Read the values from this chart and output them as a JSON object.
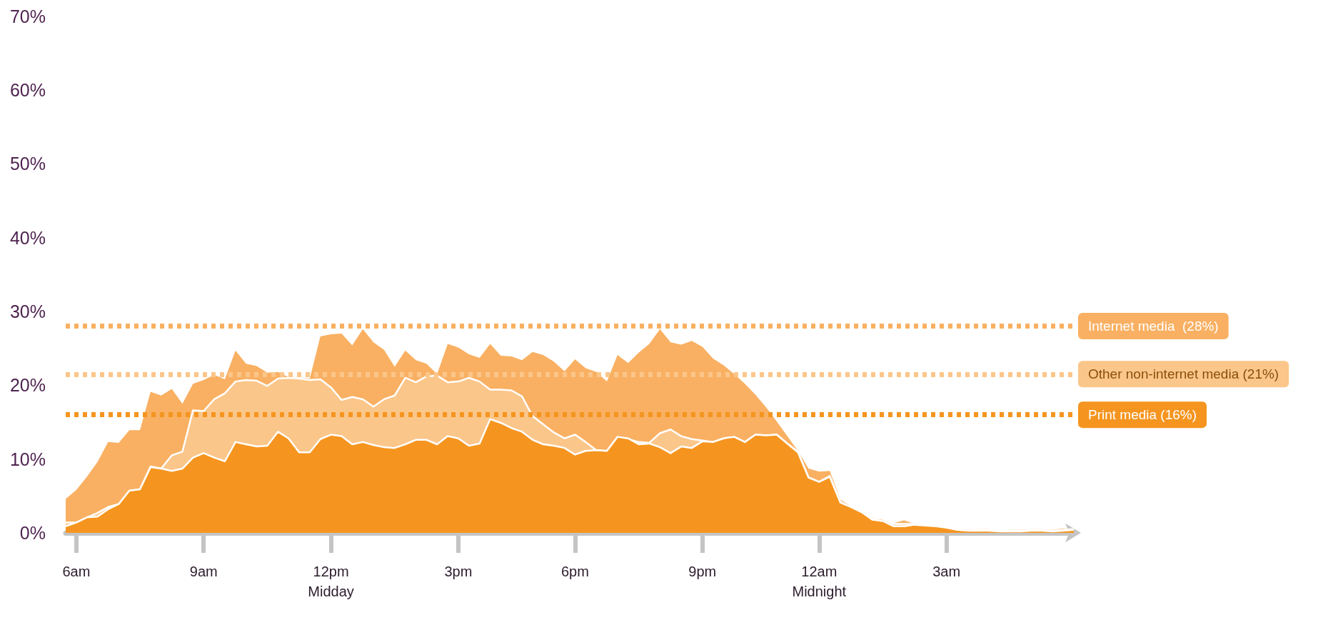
{
  "chart_data": {
    "type": "area",
    "categories": [
      null,
      "6am",
      null,
      null,
      null,
      null,
      null,
      null,
      null,
      null,
      null,
      null,
      null,
      "9am",
      null,
      null,
      null,
      null,
      null,
      null,
      null,
      null,
      null,
      null,
      null,
      "12pm\nMidday",
      null,
      null,
      null,
      null,
      null,
      null,
      null,
      null,
      null,
      null,
      null,
      "3pm",
      null,
      null,
      null,
      null,
      null,
      null,
      null,
      null,
      null,
      null,
      "6pm",
      null,
      null,
      null,
      null,
      null,
      null,
      null,
      null,
      null,
      null,
      null,
      "9pm",
      null,
      null,
      null,
      null,
      null,
      null,
      null,
      null,
      null,
      null,
      "12am\nMidnight",
      null,
      null,
      null,
      null,
      null,
      null,
      null,
      null,
      null,
      null,
      null,
      "3am",
      null,
      null,
      null,
      null,
      null,
      null,
      null,
      null,
      null,
      null,
      null,
      null
    ],
    "series": [
      {
        "color": "#f9b062",
        "values": [
          4.6,
          5.8,
          7.6,
          9.6,
          12.3,
          12.2,
          13.9,
          13.9,
          19.1,
          18.6,
          19.5,
          17.5,
          20.2,
          20.7,
          21.4,
          20.8,
          24.7,
          22.9,
          22.6,
          21.7,
          21.8,
          21.1,
          21.0,
          20.9,
          26.6,
          26.9,
          27.0,
          25.4,
          27.6,
          25.8,
          24.8,
          22.5,
          24.7,
          23.4,
          22.9,
          21.5,
          25.6,
          25.1,
          24.2,
          23.7,
          25.6,
          24.0,
          23.9,
          23.4,
          24.5,
          24.1,
          23.2,
          21.9,
          23.5,
          22.3,
          21.8,
          20.5,
          24.1,
          23.0,
          24.4,
          25.6,
          27.6,
          25.8,
          25.5,
          26.0,
          25.2,
          23.6,
          22.7,
          21.5,
          20.2,
          18.7,
          17.0,
          15.1,
          13.1,
          11.1,
          8.7,
          8.3,
          8.4,
          4.5,
          3.6,
          2.8,
          2.1,
          1.9,
          1.3,
          1.7,
          1.2,
          1.0,
          1.0,
          0.7,
          0.5,
          0.4,
          0.5,
          0.5,
          0.3,
          0.4,
          0.4,
          0.5,
          0.5,
          0.4,
          0.6,
          0.5
        ]
      },
      {
        "color": "#fbc68a",
        "values": [
          1.4,
          1.4,
          2.1,
          2.7,
          3.5,
          3.9,
          5.7,
          5.9,
          9.0,
          8.7,
          10.5,
          11.0,
          16.6,
          16.5,
          18.1,
          18.9,
          20.5,
          20.7,
          20.6,
          19.9,
          20.9,
          21.0,
          20.9,
          20.7,
          20.8,
          19.7,
          18.0,
          18.4,
          18.1,
          17.1,
          18.1,
          18.6,
          21.0,
          20.4,
          21.2,
          21.3,
          20.4,
          20.5,
          21.0,
          20.5,
          19.4,
          19.4,
          19.3,
          18.5,
          15.8,
          14.7,
          13.6,
          12.8,
          13.3,
          12.3,
          11.2,
          11.1,
          13.0,
          12.7,
          12.3,
          12.2,
          13.5,
          14.0,
          13.1,
          12.7,
          12.5,
          12.3,
          12.8,
          13.0,
          12.3,
          13.3,
          13.2,
          13.3,
          12.1,
          11.0,
          7.5,
          6.9,
          7.7,
          4.2,
          3.5,
          2.9,
          2.0,
          1.9,
          1.2,
          1.2,
          1.2,
          1.0,
          1.0,
          0.7,
          0.4,
          0.3,
          0.4,
          0.4,
          0.3,
          0.3,
          0.3,
          0.4,
          0.4,
          0.3,
          0.4,
          0.5
        ]
      },
      {
        "color": "#f5951f",
        "values": [
          0.9,
          1.4,
          2.1,
          2.2,
          3.2,
          3.9,
          5.7,
          5.9,
          8.9,
          8.7,
          8.4,
          8.7,
          10.2,
          10.8,
          10.2,
          9.7,
          12.3,
          12.0,
          11.7,
          11.8,
          13.7,
          12.8,
          10.9,
          10.9,
          12.7,
          13.3,
          13.1,
          12.0,
          12.3,
          11.9,
          11.6,
          11.5,
          12.0,
          12.6,
          12.6,
          12.0,
          13.1,
          12.8,
          11.8,
          12.1,
          15.4,
          14.9,
          14.2,
          13.7,
          12.6,
          12.0,
          11.8,
          11.5,
          10.6,
          11.1,
          11.2,
          11.1,
          13.0,
          12.8,
          12.0,
          12.1,
          11.6,
          10.8,
          11.7,
          11.5,
          12.4,
          12.3,
          12.8,
          13.0,
          12.3,
          13.3,
          13.2,
          13.3,
          12.1,
          10.9,
          7.5,
          6.9,
          7.6,
          4.1,
          3.5,
          2.8,
          1.8,
          1.6,
          0.9,
          0.9,
          1.1,
          1.0,
          0.9,
          0.7,
          0.4,
          0.3,
          0.3,
          0.3,
          0.2,
          0.2,
          0.2,
          0.3,
          0.3,
          0.2,
          0.3,
          0.4
        ]
      }
    ],
    "ylim": [
      0,
      70
    ],
    "yticks": [
      {
        "value": 0,
        "label": "0%"
      },
      {
        "value": 10,
        "label": "10%"
      },
      {
        "value": 20,
        "label": "20%"
      },
      {
        "value": 30,
        "label": "30%"
      },
      {
        "value": 40,
        "label": "40%"
      },
      {
        "value": 50,
        "label": "50%"
      },
      {
        "value": 60,
        "label": "60%"
      },
      {
        "value": 70,
        "label": "70%"
      }
    ],
    "ref_lines": [
      {
        "axis": "y",
        "value": 28,
        "label": "Internet media  (28%)",
        "color": "#f9b062",
        "line_style": "dotted"
      },
      {
        "axis": "y",
        "value": 21.5,
        "label": "Other non-internet media (21%)",
        "color": "#fbc68a",
        "line_style": "dotted"
      },
      {
        "axis": "y",
        "value": 16,
        "label": "Print media (16%)",
        "color": "#f5951f",
        "line_style": "dotted"
      }
    ],
    "grid": false,
    "marker": "none"
  }
}
